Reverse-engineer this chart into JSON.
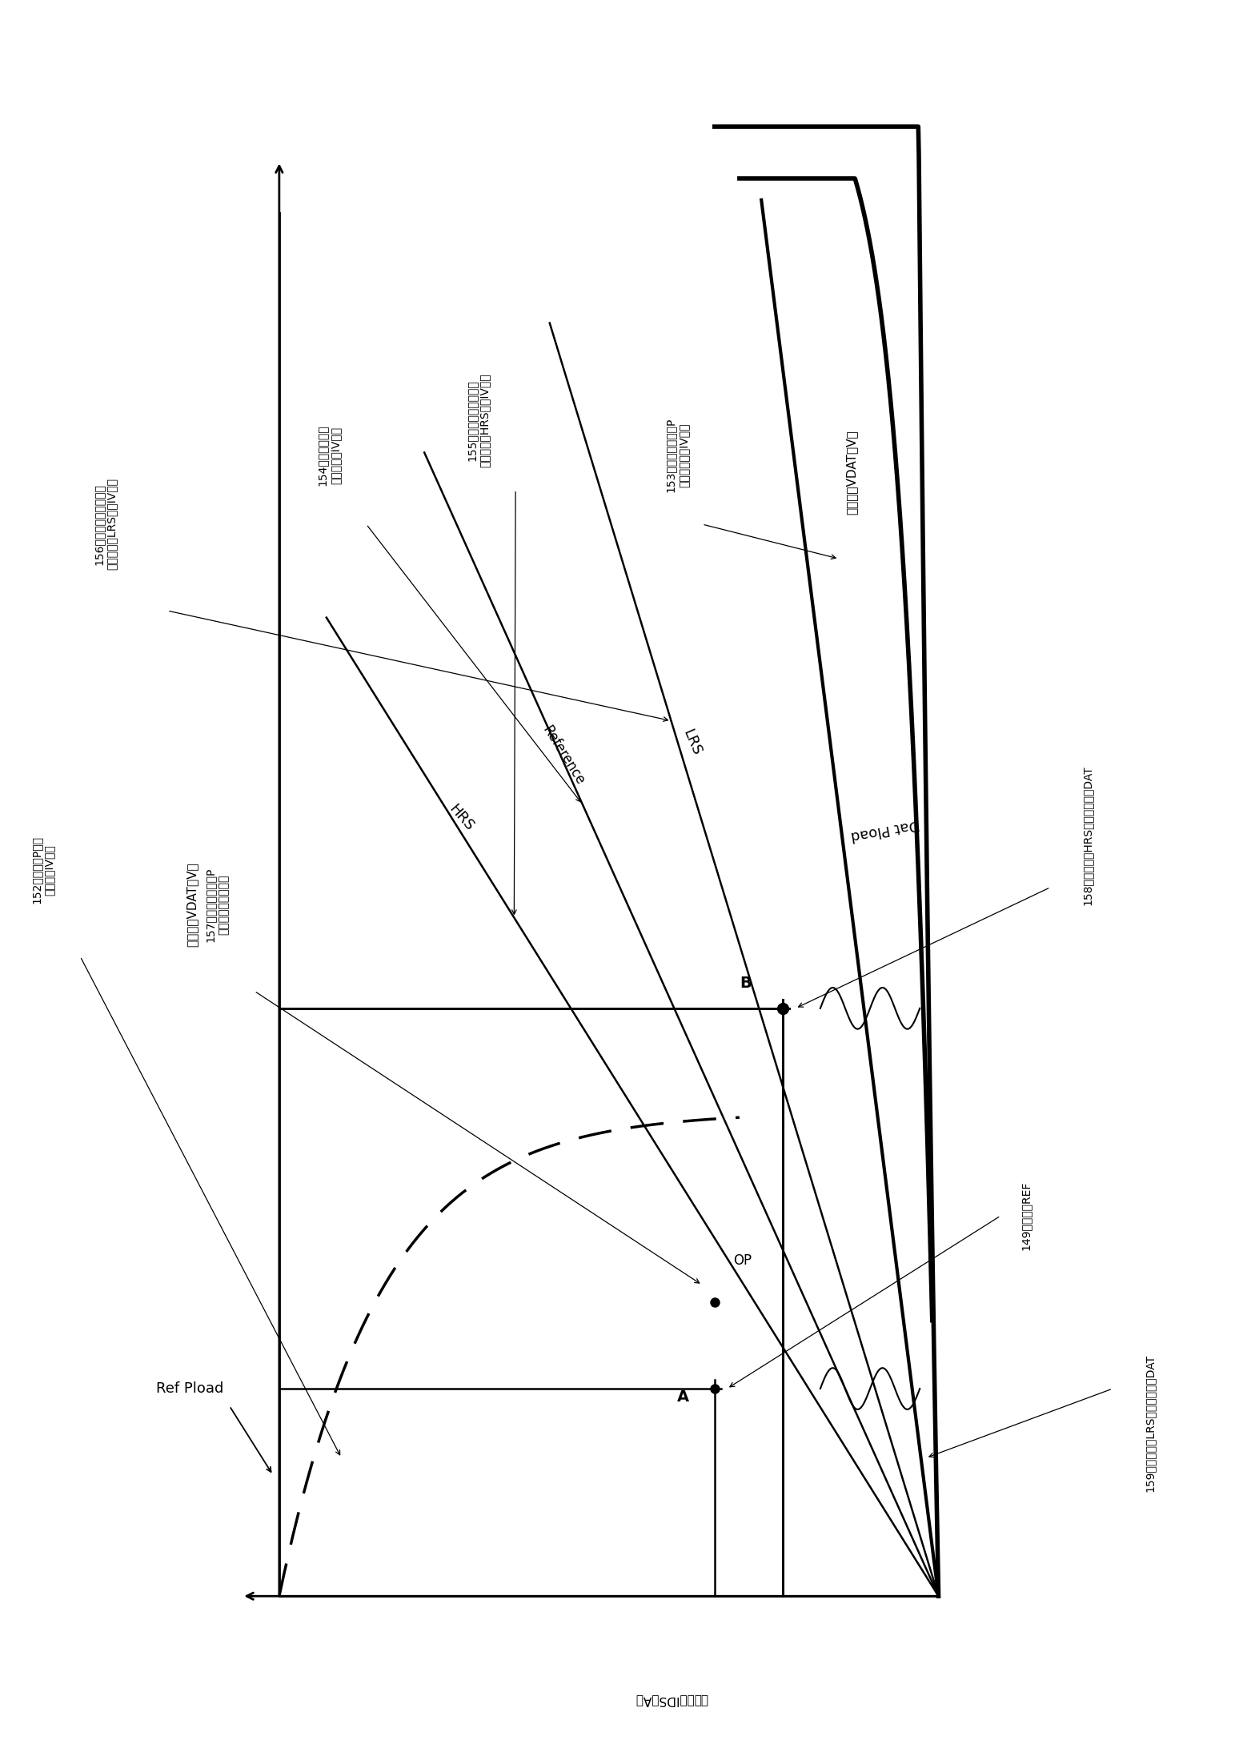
{
  "background": "#ffffff",
  "figsize": [
    15.68,
    21.74
  ],
  "dpi": 100,
  "labels": {
    "156": "156存储器单元俧输入的\n等效电阶（LRS）的IV特性",
    "154": "154参考俧输入的\n等效电阶的IV特性",
    "155": "155存储器单元俧输入的\n等效电阶（HRS）的IV特性",
    "153": "153存储器单元俧的P\n沟道晶体管的IV特性",
    "152": "152参考俧的P沟道\n晶体管的IV特性",
    "157": "157存储器单元俧的P\n沟道晶体管的动作点",
    "149": "149输出电压REF",
    "158": "158高电阴时（HRS）的输出电压DAT",
    "159": "159低电阴时（LRS）的输出电压DAT",
    "xaxis": "漏极电压VDAT［V］",
    "yaxis": "漏极电流IDS［A］"
  }
}
